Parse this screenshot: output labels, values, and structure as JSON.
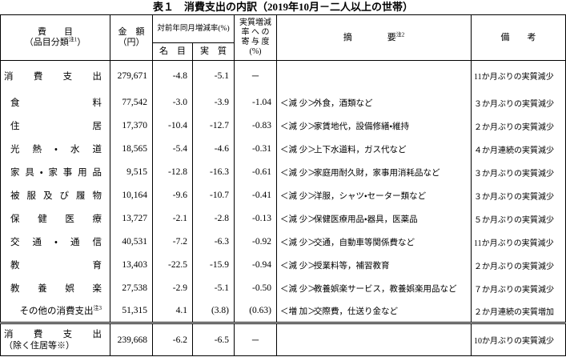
{
  "title": "表１　消費支出の内訳（2019年10月－二人以上の世帯）",
  "header": {
    "item": {
      "label": "費　　目",
      "sub": "（品目分類",
      "note": "注1",
      "sub_end": "）"
    },
    "amount": {
      "label": "金　額",
      "sub": "（円）"
    },
    "rate": {
      "label": "対前年同月増減率(%)",
      "nominal": "名　目",
      "real": "実　質"
    },
    "contribution": [
      "実質増減",
      "率 へ の",
      "寄 与 度",
      "(%)"
    ],
    "summary": {
      "label": "摘　　　　要",
      "note": "注2"
    },
    "remark": "備　　考"
  },
  "table": {
    "rows": [
      {
        "label": "消費支出",
        "amount": "279,671",
        "nominal": "-4.8",
        "real": "-5.1",
        "contribution": "－",
        "summary": null,
        "remark": "11か月ぶりの実質減少"
      },
      {
        "label": "食料",
        "amount": "77,542",
        "nominal": "-3.0",
        "real": "-3.9",
        "contribution": "-1.04",
        "summary": {
          "category": "＜減 少＞",
          "text": "外食，酒類など"
        },
        "remark": "３か月ぶりの実質減少"
      },
      {
        "label": "住居",
        "amount": "17,370",
        "nominal": "-10.4",
        "real": "-12.7",
        "contribution": "-0.83",
        "summary": {
          "category": "＜減 少＞",
          "text": "家賃地代，設備修繕・維持"
        },
        "remark": "２か月ぶりの実質減少"
      },
      {
        "label": "光熱・水道",
        "amount": "18,565",
        "nominal": "-5.4",
        "real": "-4.6",
        "contribution": "-0.31",
        "summary": {
          "category": "＜減 少＞",
          "text": "上下水道料，ガス代など"
        },
        "remark": "４か月連続の実質減少"
      },
      {
        "label": "家具・家事用品",
        "amount": "9,515",
        "nominal": "-12.8",
        "real": "-16.3",
        "contribution": "-0.61",
        "summary": {
          "category": "＜減 少＞",
          "text": "家庭用耐久財，家事用消耗品など"
        },
        "remark": "３か月ぶりの実質減少"
      },
      {
        "label": "被服及び履物",
        "amount": "10,164",
        "nominal": "-9.6",
        "real": "-10.7",
        "contribution": "-0.41",
        "summary": {
          "category": "＜減 少＞",
          "text": "洋服，シャツ・セーター類など"
        },
        "remark": "３か月ぶりの実質減少"
      },
      {
        "label": "保健医療",
        "amount": "13,727",
        "nominal": "-2.1",
        "real": "-2.8",
        "contribution": "-0.13",
        "summary": {
          "category": "＜減 少＞",
          "text": "保健医療用品・器具，医薬品"
        },
        "remark": "５か月ぶりの実質減少"
      },
      {
        "label": "交通・通信",
        "amount": "40,531",
        "nominal": "-7.2",
        "real": "-6.3",
        "contribution": "-0.92",
        "summary": {
          "category": "＜減 少＞",
          "text": "交通，自動車等関係費など"
        },
        "remark": "11か月ぶりの実質減少"
      },
      {
        "label": "教育",
        "amount": "13,403",
        "nominal": "-22.5",
        "real": "-15.9",
        "contribution": "-0.94",
        "summary": {
          "category": "＜減 少＞",
          "text": "授業料等，補習教育"
        },
        "remark": "２か月ぶりの実質減少"
      },
      {
        "label": "教養娯楽",
        "amount": "27,538",
        "nominal": "-2.9",
        "real": "-5.1",
        "contribution": "-0.50",
        "summary": {
          "category": "＜減 少＞",
          "text": "教養娯楽サービス，教養娯楽用品など"
        },
        "remark": "７か月ぶりの実質減少"
      },
      {
        "label": "その他の消費支出",
        "note": "注3",
        "amount": "51,315",
        "nominal": "4.1",
        "real": "(3.8)",
        "contribution": "(0.63)",
        "summary": {
          "category": "＜増 加＞",
          "text": "交際費，仕送り金など"
        },
        "remark": "２か月連続の実質増加"
      },
      {
        "label": "消費支出",
        "sub": "（除く住居等※）",
        "amount": "239,668",
        "nominal": "-6.2",
        "real": "-6.5",
        "contribution": "－",
        "summary": null,
        "remark": "10か月ぶりの実質減少"
      }
    ]
  }
}
